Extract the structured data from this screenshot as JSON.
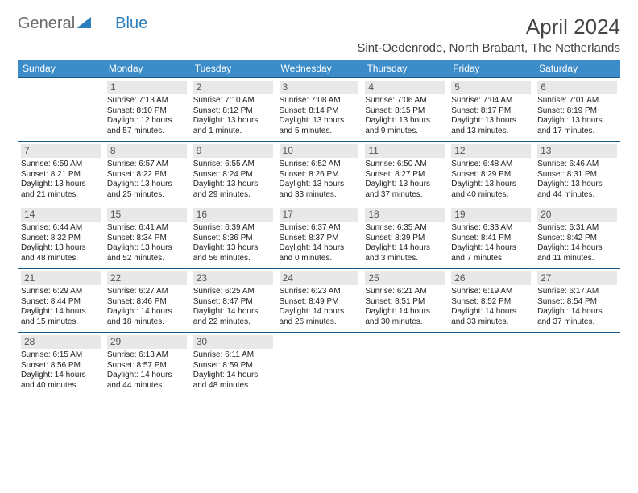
{
  "logo": {
    "part1": "General",
    "part2": "Blue"
  },
  "title": "April 2024",
  "location": "Sint-Oedenrode, North Brabant, The Netherlands",
  "colors": {
    "header_bg": "#3b8cc9",
    "header_text": "#ffffff",
    "cell_border": "#1a5a8a",
    "daynum_bg": "#e8e8e8",
    "logo_gray": "#6b6b6b",
    "logo_blue": "#2c7fbf"
  },
  "days_of_week": [
    "Sunday",
    "Monday",
    "Tuesday",
    "Wednesday",
    "Thursday",
    "Friday",
    "Saturday"
  ],
  "grid": [
    [
      null,
      {
        "n": "1",
        "sr": "Sunrise: 7:13 AM",
        "ss": "Sunset: 8:10 PM",
        "d1": "Daylight: 12 hours",
        "d2": "and 57 minutes."
      },
      {
        "n": "2",
        "sr": "Sunrise: 7:10 AM",
        "ss": "Sunset: 8:12 PM",
        "d1": "Daylight: 13 hours",
        "d2": "and 1 minute."
      },
      {
        "n": "3",
        "sr": "Sunrise: 7:08 AM",
        "ss": "Sunset: 8:14 PM",
        "d1": "Daylight: 13 hours",
        "d2": "and 5 minutes."
      },
      {
        "n": "4",
        "sr": "Sunrise: 7:06 AM",
        "ss": "Sunset: 8:15 PM",
        "d1": "Daylight: 13 hours",
        "d2": "and 9 minutes."
      },
      {
        "n": "5",
        "sr": "Sunrise: 7:04 AM",
        "ss": "Sunset: 8:17 PM",
        "d1": "Daylight: 13 hours",
        "d2": "and 13 minutes."
      },
      {
        "n": "6",
        "sr": "Sunrise: 7:01 AM",
        "ss": "Sunset: 8:19 PM",
        "d1": "Daylight: 13 hours",
        "d2": "and 17 minutes."
      }
    ],
    [
      {
        "n": "7",
        "sr": "Sunrise: 6:59 AM",
        "ss": "Sunset: 8:21 PM",
        "d1": "Daylight: 13 hours",
        "d2": "and 21 minutes."
      },
      {
        "n": "8",
        "sr": "Sunrise: 6:57 AM",
        "ss": "Sunset: 8:22 PM",
        "d1": "Daylight: 13 hours",
        "d2": "and 25 minutes."
      },
      {
        "n": "9",
        "sr": "Sunrise: 6:55 AM",
        "ss": "Sunset: 8:24 PM",
        "d1": "Daylight: 13 hours",
        "d2": "and 29 minutes."
      },
      {
        "n": "10",
        "sr": "Sunrise: 6:52 AM",
        "ss": "Sunset: 8:26 PM",
        "d1": "Daylight: 13 hours",
        "d2": "and 33 minutes."
      },
      {
        "n": "11",
        "sr": "Sunrise: 6:50 AM",
        "ss": "Sunset: 8:27 PM",
        "d1": "Daylight: 13 hours",
        "d2": "and 37 minutes."
      },
      {
        "n": "12",
        "sr": "Sunrise: 6:48 AM",
        "ss": "Sunset: 8:29 PM",
        "d1": "Daylight: 13 hours",
        "d2": "and 40 minutes."
      },
      {
        "n": "13",
        "sr": "Sunrise: 6:46 AM",
        "ss": "Sunset: 8:31 PM",
        "d1": "Daylight: 13 hours",
        "d2": "and 44 minutes."
      }
    ],
    [
      {
        "n": "14",
        "sr": "Sunrise: 6:44 AM",
        "ss": "Sunset: 8:32 PM",
        "d1": "Daylight: 13 hours",
        "d2": "and 48 minutes."
      },
      {
        "n": "15",
        "sr": "Sunrise: 6:41 AM",
        "ss": "Sunset: 8:34 PM",
        "d1": "Daylight: 13 hours",
        "d2": "and 52 minutes."
      },
      {
        "n": "16",
        "sr": "Sunrise: 6:39 AM",
        "ss": "Sunset: 8:36 PM",
        "d1": "Daylight: 13 hours",
        "d2": "and 56 minutes."
      },
      {
        "n": "17",
        "sr": "Sunrise: 6:37 AM",
        "ss": "Sunset: 8:37 PM",
        "d1": "Daylight: 14 hours",
        "d2": "and 0 minutes."
      },
      {
        "n": "18",
        "sr": "Sunrise: 6:35 AM",
        "ss": "Sunset: 8:39 PM",
        "d1": "Daylight: 14 hours",
        "d2": "and 3 minutes."
      },
      {
        "n": "19",
        "sr": "Sunrise: 6:33 AM",
        "ss": "Sunset: 8:41 PM",
        "d1": "Daylight: 14 hours",
        "d2": "and 7 minutes."
      },
      {
        "n": "20",
        "sr": "Sunrise: 6:31 AM",
        "ss": "Sunset: 8:42 PM",
        "d1": "Daylight: 14 hours",
        "d2": "and 11 minutes."
      }
    ],
    [
      {
        "n": "21",
        "sr": "Sunrise: 6:29 AM",
        "ss": "Sunset: 8:44 PM",
        "d1": "Daylight: 14 hours",
        "d2": "and 15 minutes."
      },
      {
        "n": "22",
        "sr": "Sunrise: 6:27 AM",
        "ss": "Sunset: 8:46 PM",
        "d1": "Daylight: 14 hours",
        "d2": "and 18 minutes."
      },
      {
        "n": "23",
        "sr": "Sunrise: 6:25 AM",
        "ss": "Sunset: 8:47 PM",
        "d1": "Daylight: 14 hours",
        "d2": "and 22 minutes."
      },
      {
        "n": "24",
        "sr": "Sunrise: 6:23 AM",
        "ss": "Sunset: 8:49 PM",
        "d1": "Daylight: 14 hours",
        "d2": "and 26 minutes."
      },
      {
        "n": "25",
        "sr": "Sunrise: 6:21 AM",
        "ss": "Sunset: 8:51 PM",
        "d1": "Daylight: 14 hours",
        "d2": "and 30 minutes."
      },
      {
        "n": "26",
        "sr": "Sunrise: 6:19 AM",
        "ss": "Sunset: 8:52 PM",
        "d1": "Daylight: 14 hours",
        "d2": "and 33 minutes."
      },
      {
        "n": "27",
        "sr": "Sunrise: 6:17 AM",
        "ss": "Sunset: 8:54 PM",
        "d1": "Daylight: 14 hours",
        "d2": "and 37 minutes."
      }
    ],
    [
      {
        "n": "28",
        "sr": "Sunrise: 6:15 AM",
        "ss": "Sunset: 8:56 PM",
        "d1": "Daylight: 14 hours",
        "d2": "and 40 minutes."
      },
      {
        "n": "29",
        "sr": "Sunrise: 6:13 AM",
        "ss": "Sunset: 8:57 PM",
        "d1": "Daylight: 14 hours",
        "d2": "and 44 minutes."
      },
      {
        "n": "30",
        "sr": "Sunrise: 6:11 AM",
        "ss": "Sunset: 8:59 PM",
        "d1": "Daylight: 14 hours",
        "d2": "and 48 minutes."
      },
      null,
      null,
      null,
      null
    ]
  ]
}
